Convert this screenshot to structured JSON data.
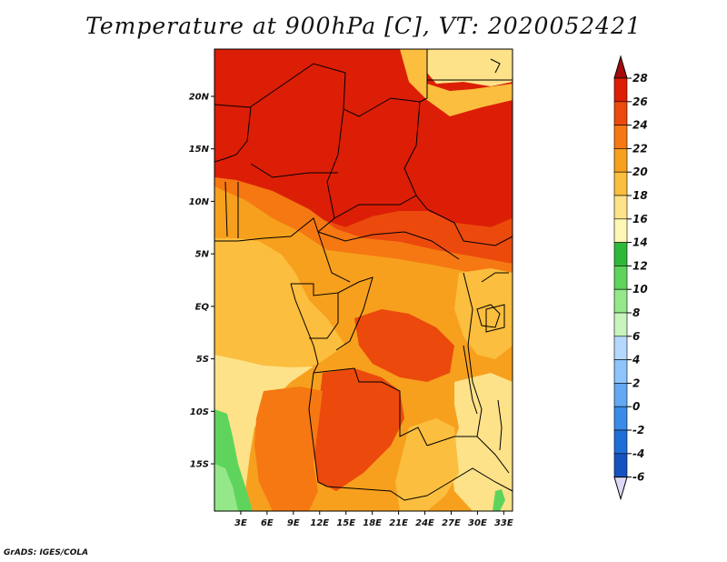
{
  "title": "Temperature at 900hPa [C], VT: 2020052421",
  "footer": "GrADS: IGES/COLA",
  "map": {
    "region": "Central Africa",
    "variable": "Temperature at 900hPa",
    "units": "C",
    "valid_time": "2020052421",
    "lat_range": [
      -19.5,
      24.5
    ],
    "lon_range": [
      0,
      34
    ],
    "lat_ticks": [
      {
        "label": "20N",
        "value": 20
      },
      {
        "label": "15N",
        "value": 15
      },
      {
        "label": "10N",
        "value": 10
      },
      {
        "label": "5N",
        "value": 5
      },
      {
        "label": "EQ",
        "value": 0
      },
      {
        "label": "5S",
        "value": -5
      },
      {
        "label": "10S",
        "value": -10
      },
      {
        "label": "15S",
        "value": -15
      }
    ],
    "lon_ticks": [
      {
        "label": "3E",
        "value": 3
      },
      {
        "label": "6E",
        "value": 6
      },
      {
        "label": "9E",
        "value": 9
      },
      {
        "label": "12E",
        "value": 12
      },
      {
        "label": "15E",
        "value": 15
      },
      {
        "label": "18E",
        "value": 18
      },
      {
        "label": "21E",
        "value": 21
      },
      {
        "label": "24E",
        "value": 24
      },
      {
        "label": "27E",
        "value": 27
      },
      {
        "label": "30E",
        "value": 30
      },
      {
        "label": "33E",
        "value": 33
      }
    ]
  },
  "colorbar": {
    "labels": [
      "28",
      "26",
      "24",
      "22",
      "20",
      "18",
      "16",
      "14",
      "12",
      "10",
      "8",
      "6",
      "4",
      "2",
      "0",
      "-2",
      "-4",
      "-6"
    ],
    "colors": [
      "#a50a0a",
      "#dc1e06",
      "#eb4a0c",
      "#f57812",
      "#f7a01e",
      "#fbbe3e",
      "#fde289",
      "#fdf6b4",
      "#2eb83a",
      "#5ed45c",
      "#95e88a",
      "#c8f5be",
      "#b5d8ff",
      "#8dc4fb",
      "#62a8f2",
      "#3a8be8",
      "#1e6ed8",
      "#1453bf",
      "#0c3aa2",
      "#071f7a",
      "#dcd8f5"
    ]
  }
}
